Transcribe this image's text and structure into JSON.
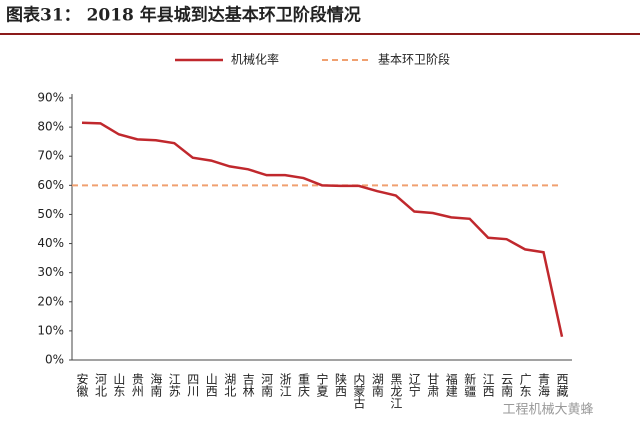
{
  "title": "图表31：  2018 年县城到达基本环卫阶段情况",
  "watermark": "工程机械大黄蜂",
  "chart_data": {
    "type": "line",
    "categories": [
      "安徽",
      "河北",
      "山东",
      "贵州",
      "海南",
      "江苏",
      "四川",
      "山西",
      "湖北",
      "吉林",
      "河南",
      "浙江",
      "重庆",
      "宁夏",
      "陕西",
      "内蒙古",
      "湖南",
      "黑龙江",
      "辽宁",
      "甘肃",
      "福建",
      "新疆",
      "江西",
      "云南",
      "广东",
      "青海",
      "西藏"
    ],
    "series": [
      {
        "name": "机械化率",
        "color": "#c0282d",
        "values": [
          81.5,
          81.3,
          77.5,
          75.8,
          75.5,
          74.5,
          69.5,
          68.5,
          66.5,
          65.5,
          63.5,
          63.5,
          62.5,
          60,
          59.8,
          59.8,
          58,
          56.5,
          51,
          50.5,
          49,
          48.5,
          42,
          41.5,
          38,
          37,
          8
        ]
      }
    ],
    "reference": {
      "name": "基本环卫阶段",
      "value": 60,
      "color": "#f0a070"
    },
    "ylim": [
      0,
      90
    ],
    "yticks": [
      {
        "value": 0,
        "label": "0%"
      },
      {
        "value": 10,
        "label": "10%"
      },
      {
        "value": 20,
        "label": "20%"
      },
      {
        "value": 30,
        "label": "30%"
      },
      {
        "value": 40,
        "label": "40%"
      },
      {
        "value": 50,
        "label": "50%"
      },
      {
        "value": 60,
        "label": "60%"
      },
      {
        "value": 70,
        "label": "70%"
      },
      {
        "value": 80,
        "label": "80%"
      },
      {
        "value": 90,
        "label": "90%"
      }
    ],
    "grid": false
  }
}
